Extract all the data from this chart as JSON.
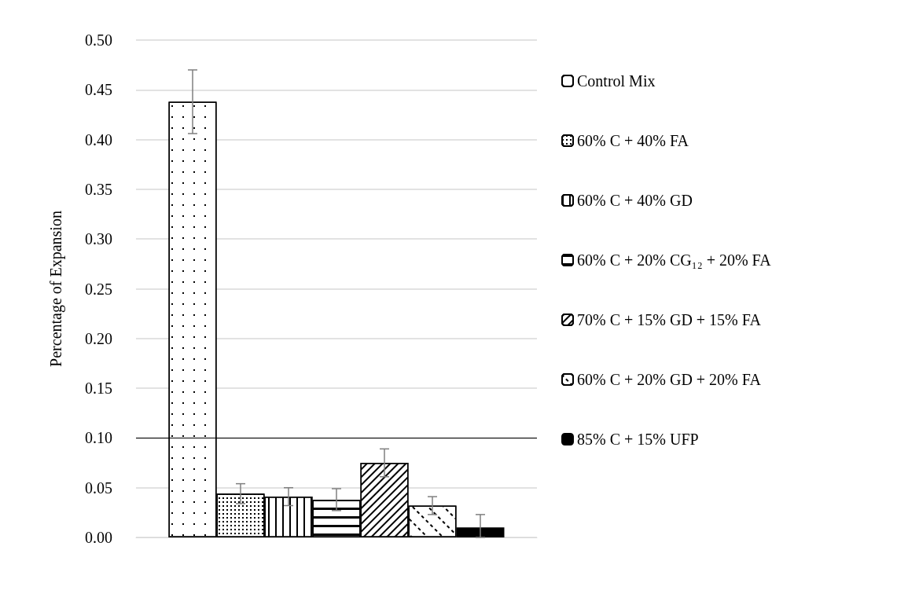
{
  "chart_data": {
    "type": "bar",
    "ylabel": "Percentage of Expansion",
    "categories": [
      null
    ],
    "series": [
      {
        "name": "Control Mix",
        "color": "#ffffff",
        "values": [
          0.438
        ],
        "errors": [
          0.032
        ]
      },
      {
        "name": "60% C + 40% FA",
        "color": "#ffffff",
        "values": [
          0.044
        ],
        "errors": [
          0.01
        ]
      },
      {
        "name": "60% C + 40% GD",
        "color": "#ffffff",
        "values": [
          0.041
        ],
        "errors": [
          0.009
        ]
      },
      {
        "name": "60% C + 20% CG₁₂ + 20% FA",
        "color": "#ffffff",
        "values": [
          0.038
        ],
        "errors": [
          0.011
        ]
      },
      {
        "name": "70% C + 15% GD + 15% FA",
        "color": "#ffffff",
        "values": [
          0.075
        ],
        "errors": [
          0.014
        ]
      },
      {
        "name": "60% C + 20% GD + 20% FA",
        "color": "#ffffff",
        "values": [
          0.032
        ],
        "errors": [
          0.009
        ]
      },
      {
        "name": "85% C + 15% UFP",
        "color": "#000000",
        "values": [
          0.01
        ],
        "errors": [
          [
            0.0,
            0.023
          ]
        ]
      }
    ],
    "ylim": [
      0,
      0.5
    ],
    "yticks": [
      {
        "value": 0,
        "label": "0.00"
      },
      {
        "value": 0.05,
        "label": "0.05"
      },
      {
        "value": 0.1,
        "label": "0.10"
      },
      {
        "value": 0.15,
        "label": "0.15"
      },
      {
        "value": 0.2,
        "label": "0.20"
      },
      {
        "value": 0.25,
        "label": "0.25"
      },
      {
        "value": 0.3,
        "label": "0.30"
      },
      {
        "value": 0.35,
        "label": "0.35"
      },
      {
        "value": 0.4,
        "label": "0.40"
      },
      {
        "value": 0.45,
        "label": "0.45"
      },
      {
        "value": 0.5,
        "label": "0.50"
      }
    ],
    "ref_lines": [
      {
        "axis": "y",
        "value": 0.1,
        "label": null,
        "color": "#000000"
      }
    ],
    "grid": "y",
    "legend": "right",
    "tick_labels": "y"
  }
}
